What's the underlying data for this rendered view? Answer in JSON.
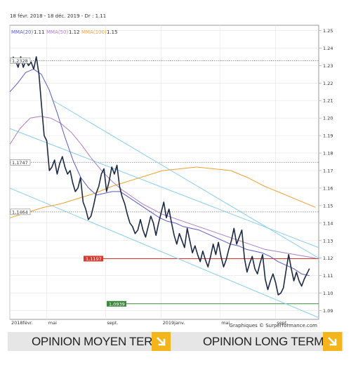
{
  "header": {
    "range_text": "18 févr. 2018 - 18 déc. 2019 - Dr : 1.11",
    "legend": [
      {
        "label": "MMA(20)",
        "value": "1.11",
        "color": "#5a5ac8"
      },
      {
        "label": "MMA(50)",
        "value": "1.12",
        "color": "#b07cc6"
      },
      {
        "label": "MMA(100)",
        "value": "1.15",
        "color": "#f0a030"
      }
    ]
  },
  "chart_data": {
    "type": "line",
    "x_ticks": [
      "2018févr.",
      "mai",
      "sept.",
      "2019janv.",
      "mai",
      "sept."
    ],
    "y_ticks": [
      "1.25",
      "1.24",
      "1.23",
      "1.22",
      "1.21",
      "1.20",
      "1.19",
      "1.18",
      "1.17",
      "1.16",
      "1.15",
      "1.14",
      "1.13",
      "1.12",
      "1.11",
      "1.10",
      "1.09"
    ],
    "ylim": [
      1.085,
      1.253
    ],
    "price_series": [
      1.235,
      1.233,
      1.229,
      1.235,
      1.229,
      1.233,
      1.23,
      1.232,
      1.228,
      1.235,
      1.225,
      1.207,
      1.19,
      1.187,
      1.17,
      1.172,
      1.176,
      1.168,
      1.174,
      1.178,
      1.172,
      1.168,
      1.17,
      1.163,
      1.158,
      1.16,
      1.166,
      1.152,
      1.148,
      1.142,
      1.144,
      1.15,
      1.157,
      1.161,
      1.168,
      1.171,
      1.158,
      1.164,
      1.172,
      1.168,
      1.173,
      1.161,
      1.155,
      1.151,
      1.145,
      1.14,
      1.138,
      1.134,
      1.136,
      1.142,
      1.136,
      1.132,
      1.138,
      1.144,
      1.14,
      1.133,
      1.14,
      1.146,
      1.152,
      1.143,
      1.148,
      1.14,
      1.133,
      1.128,
      1.134,
      1.13,
      1.126,
      1.137,
      1.13,
      1.123,
      1.127,
      1.122,
      1.118,
      1.124,
      1.119,
      1.115,
      1.121,
      1.128,
      1.122,
      1.129,
      1.121,
      1.115,
      1.119,
      1.125,
      1.13,
      1.137,
      1.128,
      1.132,
      1.136,
      1.12,
      1.112,
      1.117,
      1.121,
      1.114,
      1.111,
      1.117,
      1.122,
      1.108,
      1.102,
      1.107,
      1.111,
      1.106,
      1.099,
      1.1,
      1.103,
      1.113,
      1.122,
      1.114,
      1.107,
      1.112,
      1.107,
      1.104,
      1.108,
      1.111,
      1.114
    ],
    "ma20": [
      1.215,
      1.22,
      1.226,
      1.228,
      1.225,
      1.216,
      1.203,
      1.189,
      1.176,
      1.166,
      1.16,
      1.156,
      1.157,
      1.158,
      1.158,
      1.155,
      1.152,
      1.149,
      1.146,
      1.143,
      1.141,
      1.14,
      1.138,
      1.137,
      1.136,
      1.134,
      1.132,
      1.13,
      1.128,
      1.127,
      1.125,
      1.124,
      1.123,
      1.121,
      1.118,
      1.116,
      1.114,
      1.111,
      1.11
    ],
    "ma50": [
      1.185,
      1.194,
      1.2,
      1.201,
      1.2,
      1.197,
      1.192,
      1.185,
      1.177,
      1.17,
      1.164,
      1.159,
      1.155,
      1.151,
      1.148,
      1.145,
      1.143,
      1.141,
      1.139,
      1.137,
      1.135,
      1.133,
      1.131,
      1.129,
      1.127,
      1.125,
      1.124,
      1.123,
      1.122,
      1.121,
      1.12
    ],
    "ma100": [
      1.143,
      1.146,
      1.149,
      1.151,
      1.154,
      1.157,
      1.161,
      1.164,
      1.167,
      1.17,
      1.171,
      1.172,
      1.171,
      1.17,
      1.166,
      1.161,
      1.157,
      1.153,
      1.149
    ],
    "channel_lines": [
      {
        "points": [
          [
            0,
            1.194
          ],
          [
            1,
            1.126
          ]
        ],
        "color": "#87cef0"
      },
      {
        "points": [
          [
            0,
            1.16
          ],
          [
            1,
            1.086
          ]
        ],
        "color": "#87cef0"
      },
      {
        "points": [
          [
            0,
            1.21
          ],
          [
            1,
            1.12
          ]
        ],
        "color": "#87cef0"
      }
    ],
    "levels": [
      {
        "value": 1.2328,
        "label": "1,2328",
        "color": "#777777",
        "style": "dotted"
      },
      {
        "value": 1.1747,
        "label": "1,1747",
        "color": "#777777",
        "style": "dotted"
      },
      {
        "value": 1.1464,
        "label": "1,1464",
        "color": "#777777",
        "style": "dotted"
      },
      {
        "value": 1.1197,
        "label": "1,1197",
        "color": "#d93b2e",
        "style": "solid"
      },
      {
        "value": 1.0939,
        "label": "1,0939",
        "color": "#3a8a3a",
        "style": "solid"
      }
    ],
    "grid": true
  },
  "footer": {
    "credit": "Graphiques © Surperformance.com"
  },
  "opinions": {
    "medium_term_label": "OPINION MOYEN TERME",
    "long_term_label": "OPINION LONG TERME",
    "arrow_color": "#f3b41c"
  }
}
